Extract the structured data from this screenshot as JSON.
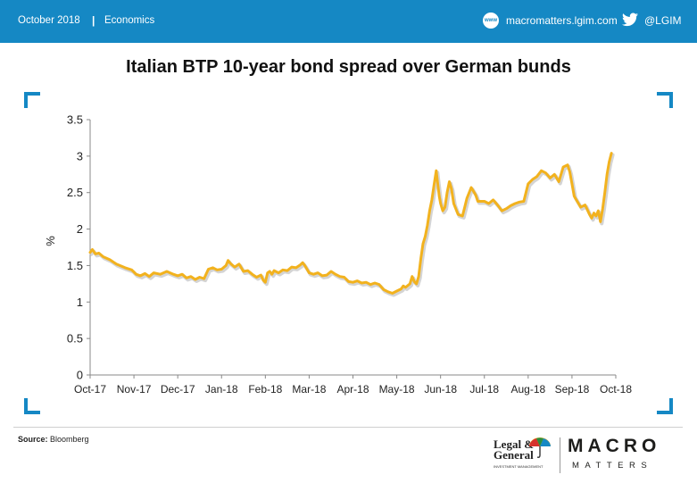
{
  "header": {
    "date": "October 2018",
    "separator": "|",
    "category": "Economics",
    "website_icon_text": "www",
    "website": "macromatters.lgim.com",
    "twitter_handle": "@LGIM"
  },
  "footer": {
    "source_label": "Source:",
    "source_value": "Bloomberg",
    "legal_general_line1": "Legal &",
    "legal_general_line2": "General",
    "legal_general_sub": "INVESTMENT MANAGEMENT",
    "brand_macro": "MACRO",
    "brand_matters": "MATTERS"
  },
  "colors": {
    "brand_blue": "#1588c4",
    "series": "#f2b21e"
  },
  "chart_data": {
    "type": "line",
    "title": "Italian BTP 10-year bond spread over German bunds",
    "xlabel": "",
    "ylabel": "%",
    "ylim": [
      0,
      3.5
    ],
    "yticks": [
      "0",
      "0.5",
      "1",
      "1.5",
      "2",
      "2.5",
      "3",
      "3.5"
    ],
    "xticks": [
      "Oct-17",
      "Nov-17",
      "Dec-17",
      "Jan-18",
      "Feb-18",
      "Mar-18",
      "Apr-18",
      "May-18",
      "Jun-18",
      "Jul-18",
      "Aug-18",
      "Sep-18",
      "Oct-18"
    ],
    "grid": false,
    "legend": "none",
    "series": [
      {
        "values": [
          [
            0,
            1.68
          ],
          [
            0.05,
            1.72
          ],
          [
            0.12,
            1.66
          ],
          [
            0.2,
            1.67
          ],
          [
            0.3,
            1.62
          ],
          [
            0.45,
            1.58
          ],
          [
            0.6,
            1.52
          ],
          [
            0.8,
            1.47
          ],
          [
            0.95,
            1.44
          ],
          [
            1.05,
            1.38
          ],
          [
            1.15,
            1.36
          ],
          [
            1.25,
            1.39
          ],
          [
            1.35,
            1.35
          ],
          [
            1.45,
            1.4
          ],
          [
            1.6,
            1.38
          ],
          [
            1.75,
            1.42
          ],
          [
            1.9,
            1.38
          ],
          [
            2.0,
            1.36
          ],
          [
            2.1,
            1.38
          ],
          [
            2.2,
            1.33
          ],
          [
            2.3,
            1.35
          ],
          [
            2.4,
            1.31
          ],
          [
            2.5,
            1.34
          ],
          [
            2.6,
            1.32
          ],
          [
            2.7,
            1.45
          ],
          [
            2.8,
            1.47
          ],
          [
            2.9,
            1.44
          ],
          [
            3.0,
            1.45
          ],
          [
            3.1,
            1.5
          ],
          [
            3.15,
            1.57
          ],
          [
            3.2,
            1.53
          ],
          [
            3.3,
            1.48
          ],
          [
            3.4,
            1.52
          ],
          [
            3.5,
            1.42
          ],
          [
            3.6,
            1.43
          ],
          [
            3.7,
            1.38
          ],
          [
            3.8,
            1.34
          ],
          [
            3.9,
            1.37
          ],
          [
            3.95,
            1.3
          ],
          [
            4.0,
            1.27
          ],
          [
            4.05,
            1.4
          ],
          [
            4.1,
            1.42
          ],
          [
            4.15,
            1.38
          ],
          [
            4.2,
            1.43
          ],
          [
            4.3,
            1.4
          ],
          [
            4.4,
            1.44
          ],
          [
            4.5,
            1.43
          ],
          [
            4.6,
            1.48
          ],
          [
            4.7,
            1.47
          ],
          [
            4.8,
            1.51
          ],
          [
            4.85,
            1.54
          ],
          [
            4.9,
            1.5
          ],
          [
            4.95,
            1.45
          ],
          [
            5.0,
            1.4
          ],
          [
            5.1,
            1.38
          ],
          [
            5.2,
            1.4
          ],
          [
            5.3,
            1.36
          ],
          [
            5.4,
            1.37
          ],
          [
            5.5,
            1.42
          ],
          [
            5.6,
            1.38
          ],
          [
            5.7,
            1.35
          ],
          [
            5.8,
            1.34
          ],
          [
            5.9,
            1.28
          ],
          [
            6.0,
            1.27
          ],
          [
            6.1,
            1.29
          ],
          [
            6.2,
            1.26
          ],
          [
            6.3,
            1.27
          ],
          [
            6.4,
            1.24
          ],
          [
            6.5,
            1.26
          ],
          [
            6.6,
            1.24
          ],
          [
            6.7,
            1.17
          ],
          [
            6.8,
            1.14
          ],
          [
            6.9,
            1.12
          ],
          [
            7.0,
            1.15
          ],
          [
            7.1,
            1.18
          ],
          [
            7.15,
            1.22
          ],
          [
            7.2,
            1.2
          ],
          [
            7.3,
            1.25
          ],
          [
            7.35,
            1.35
          ],
          [
            7.4,
            1.28
          ],
          [
            7.45,
            1.25
          ],
          [
            7.5,
            1.35
          ],
          [
            7.55,
            1.6
          ],
          [
            7.6,
            1.8
          ],
          [
            7.65,
            1.9
          ],
          [
            7.7,
            2.05
          ],
          [
            7.75,
            2.25
          ],
          [
            7.8,
            2.4
          ],
          [
            7.85,
            2.6
          ],
          [
            7.9,
            2.8
          ],
          [
            7.93,
            2.65
          ],
          [
            7.97,
            2.45
          ],
          [
            8.0,
            2.35
          ],
          [
            8.05,
            2.25
          ],
          [
            8.1,
            2.3
          ],
          [
            8.15,
            2.5
          ],
          [
            8.2,
            2.65
          ],
          [
            8.25,
            2.55
          ],
          [
            8.3,
            2.35
          ],
          [
            8.4,
            2.2
          ],
          [
            8.5,
            2.18
          ],
          [
            8.55,
            2.3
          ],
          [
            8.6,
            2.42
          ],
          [
            8.7,
            2.57
          ],
          [
            8.8,
            2.47
          ],
          [
            8.85,
            2.38
          ],
          [
            9.0,
            2.38
          ],
          [
            9.1,
            2.35
          ],
          [
            9.2,
            2.4
          ],
          [
            9.3,
            2.33
          ],
          [
            9.4,
            2.25
          ],
          [
            9.5,
            2.28
          ],
          [
            9.6,
            2.32
          ],
          [
            9.7,
            2.35
          ],
          [
            9.8,
            2.37
          ],
          [
            9.9,
            2.38
          ],
          [
            10.0,
            2.62
          ],
          [
            10.1,
            2.68
          ],
          [
            10.2,
            2.72
          ],
          [
            10.3,
            2.8
          ],
          [
            10.4,
            2.77
          ],
          [
            10.5,
            2.7
          ],
          [
            10.6,
            2.75
          ],
          [
            10.7,
            2.65
          ],
          [
            10.8,
            2.85
          ],
          [
            10.9,
            2.88
          ],
          [
            10.95,
            2.78
          ],
          [
            11.0,
            2.62
          ],
          [
            11.05,
            2.45
          ],
          [
            11.1,
            2.4
          ],
          [
            11.2,
            2.3
          ],
          [
            11.3,
            2.33
          ],
          [
            11.4,
            2.2
          ],
          [
            11.45,
            2.15
          ],
          [
            11.5,
            2.22
          ],
          [
            11.55,
            2.18
          ],
          [
            11.6,
            2.25
          ],
          [
            11.65,
            2.1
          ],
          [
            11.7,
            2.28
          ],
          [
            11.75,
            2.5
          ],
          [
            11.8,
            2.75
          ],
          [
            11.85,
            2.92
          ],
          [
            11.9,
            3.04
          ]
        ]
      }
    ]
  }
}
